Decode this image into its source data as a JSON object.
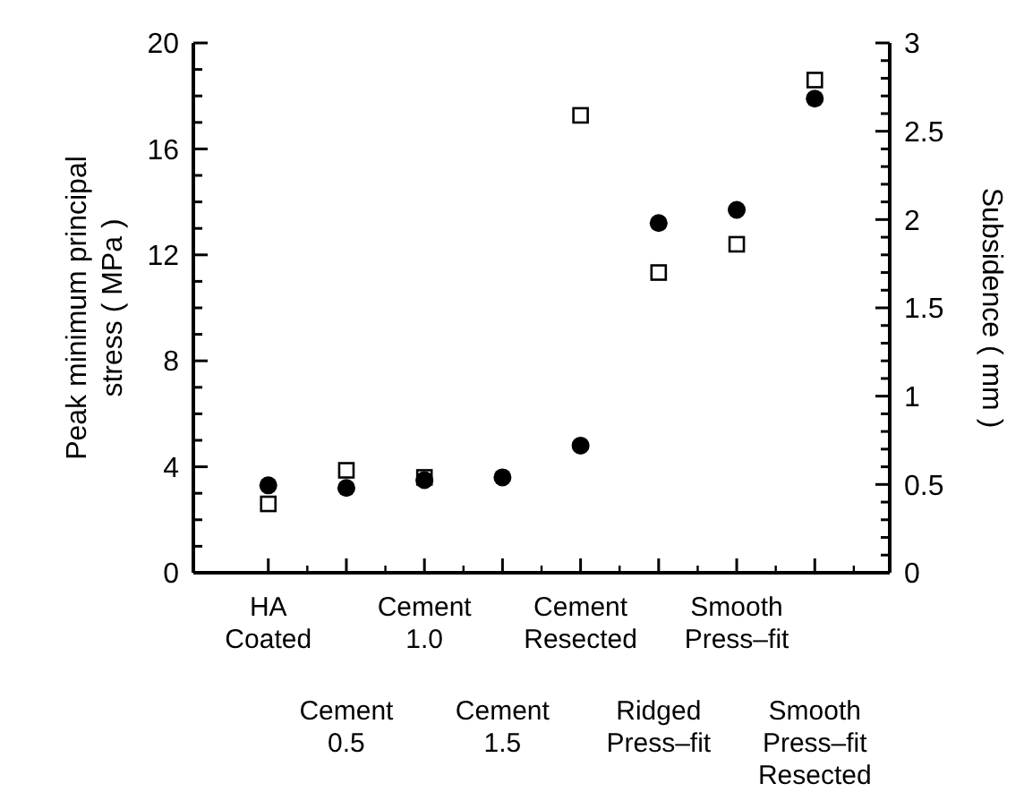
{
  "chart_data": {
    "type": "scatter",
    "ylabel": "Peak minimum principal\nstress ( MPa )",
    "y2label": "Subsidence ( mm )",
    "categories": [
      "HA\nCoated",
      "Cement\n0.5",
      "Cement\n1.0",
      "Cement\n1.5",
      "Cement\nResected",
      "Ridged\nPress–fit",
      "Smooth\nPress–fit",
      "Smooth\nPress–fit\nResected"
    ],
    "series": [
      {
        "color": "#000000",
        "marker": "circle",
        "values": [
          3.3,
          3.2,
          3.5,
          3.6,
          4.8,
          13.2,
          13.7,
          17.9
        ]
      },
      {
        "color": "#000000",
        "marker": "square",
        "axis": "y2",
        "values": [
          0.39,
          0.58,
          0.54,
          null,
          2.59,
          1.7,
          1.86,
          2.79
        ]
      }
    ],
    "ylim": [
      0,
      20
    ],
    "yticks": [
      0,
      {
        "value": 1,
        "label": null
      },
      {
        "value": 2,
        "label": null
      },
      {
        "value": 3,
        "label": null
      },
      4,
      {
        "value": 5,
        "label": null
      },
      {
        "value": 6,
        "label": null
      },
      {
        "value": 7,
        "label": null
      },
      8,
      {
        "value": 9,
        "label": null
      },
      {
        "value": 10,
        "label": null
      },
      {
        "value": 11,
        "label": null
      },
      12,
      {
        "value": 13,
        "label": null
      },
      {
        "value": 14,
        "label": null
      },
      {
        "value": 15,
        "label": null
      },
      16,
      {
        "value": 17,
        "label": null
      },
      {
        "value": 18,
        "label": null
      },
      {
        "value": 19,
        "label": null
      },
      20
    ],
    "y2lim": [
      0,
      3
    ],
    "y2ticks": [
      0,
      {
        "value": 0.1,
        "label": null
      },
      {
        "value": 0.2,
        "label": null
      },
      {
        "value": 0.3,
        "label": null
      },
      {
        "value": 0.4,
        "label": null
      },
      0.5,
      {
        "value": 0.6,
        "label": null
      },
      {
        "value": 0.7,
        "label": null
      },
      {
        "value": 0.8,
        "label": null
      },
      {
        "value": 0.9,
        "label": null
      },
      1,
      {
        "value": 1.1,
        "label": null
      },
      {
        "value": 1.2,
        "label": null
      },
      {
        "value": 1.3,
        "label": null
      },
      {
        "value": 1.4,
        "label": null
      },
      1.5,
      {
        "value": 1.6,
        "label": null
      },
      {
        "value": 1.7,
        "label": null
      },
      {
        "value": 1.8,
        "label": null
      },
      {
        "value": 1.9,
        "label": null
      },
      2,
      {
        "value": 2.1,
        "label": null
      },
      {
        "value": 2.2,
        "label": null
      },
      {
        "value": 2.3,
        "label": null
      },
      {
        "value": 2.4,
        "label": null
      },
      2.5,
      {
        "value": 2.6,
        "label": null
      },
      {
        "value": 2.7,
        "label": null
      },
      {
        "value": 2.8,
        "label": null
      },
      {
        "value": 2.9,
        "label": null
      },
      3
    ],
    "grid": false
  }
}
